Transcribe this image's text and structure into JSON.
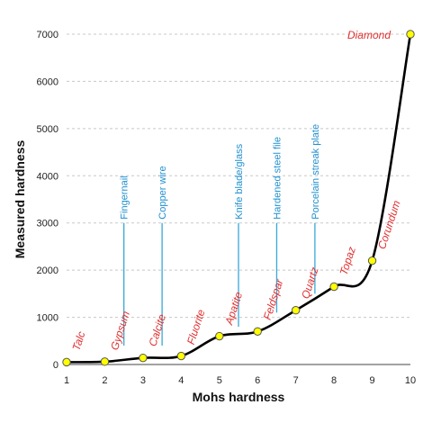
{
  "chart_data": {
    "type": "line",
    "xlabel": "Mohs hardness",
    "ylabel": "Measured hardness",
    "xlim": [
      1,
      10
    ],
    "ylim": [
      0,
      7000
    ],
    "x_ticks": [
      1,
      2,
      3,
      4,
      5,
      6,
      7,
      8,
      9,
      10
    ],
    "y_ticks": [
      0,
      1000,
      2000,
      3000,
      4000,
      5000,
      6000,
      7000
    ],
    "grid": "horizontal dashed",
    "series": [
      {
        "x": [
          1,
          2,
          3,
          4,
          5,
          6,
          7,
          8,
          9,
          10
        ],
        "y": [
          50,
          60,
          140,
          180,
          600,
          700,
          1150,
          1650,
          2200,
          7000
        ]
      }
    ],
    "minerals": [
      {
        "name": "Talc",
        "x": 1,
        "y": 50
      },
      {
        "name": "Gypsum",
        "x": 2,
        "y": 60
      },
      {
        "name": "Calcite",
        "x": 3,
        "y": 140
      },
      {
        "name": "Fluorite",
        "x": 4,
        "y": 180
      },
      {
        "name": "Apatite",
        "x": 5,
        "y": 600
      },
      {
        "name": "Feldspar",
        "x": 6,
        "y": 700
      },
      {
        "name": "Quartz",
        "x": 7,
        "y": 1150
      },
      {
        "name": "Topaz",
        "x": 8,
        "y": 1650
      },
      {
        "name": "Corundum",
        "x": 9,
        "y": 2200
      },
      {
        "name": "Diamond",
        "x": 10,
        "y": 7000
      }
    ],
    "tools": [
      {
        "name": "Fingernail",
        "x": 2.5,
        "y_bottom": 400,
        "y_top": 3000
      },
      {
        "name": "Copper wire",
        "x": 3.5,
        "y_bottom": 400,
        "y_top": 3000
      },
      {
        "name": "Knife blade/glass",
        "x": 5.5,
        "y_bottom": 800,
        "y_top": 3000
      },
      {
        "name": "Hardened steel file",
        "x": 6.5,
        "y_bottom": 1100,
        "y_top": 3000
      },
      {
        "name": "Porcelain streak plate",
        "x": 7.5,
        "y_bottom": 1500,
        "y_top": 3000
      }
    ],
    "colors": {
      "line": "#000000",
      "marker_fill": "#ffff00",
      "marker_stroke": "#555555",
      "mineral_label": "#e03030",
      "tool_label": "#1f8fcf",
      "tool_line": "#39a8d8",
      "grid": "#c8c8c8"
    }
  }
}
